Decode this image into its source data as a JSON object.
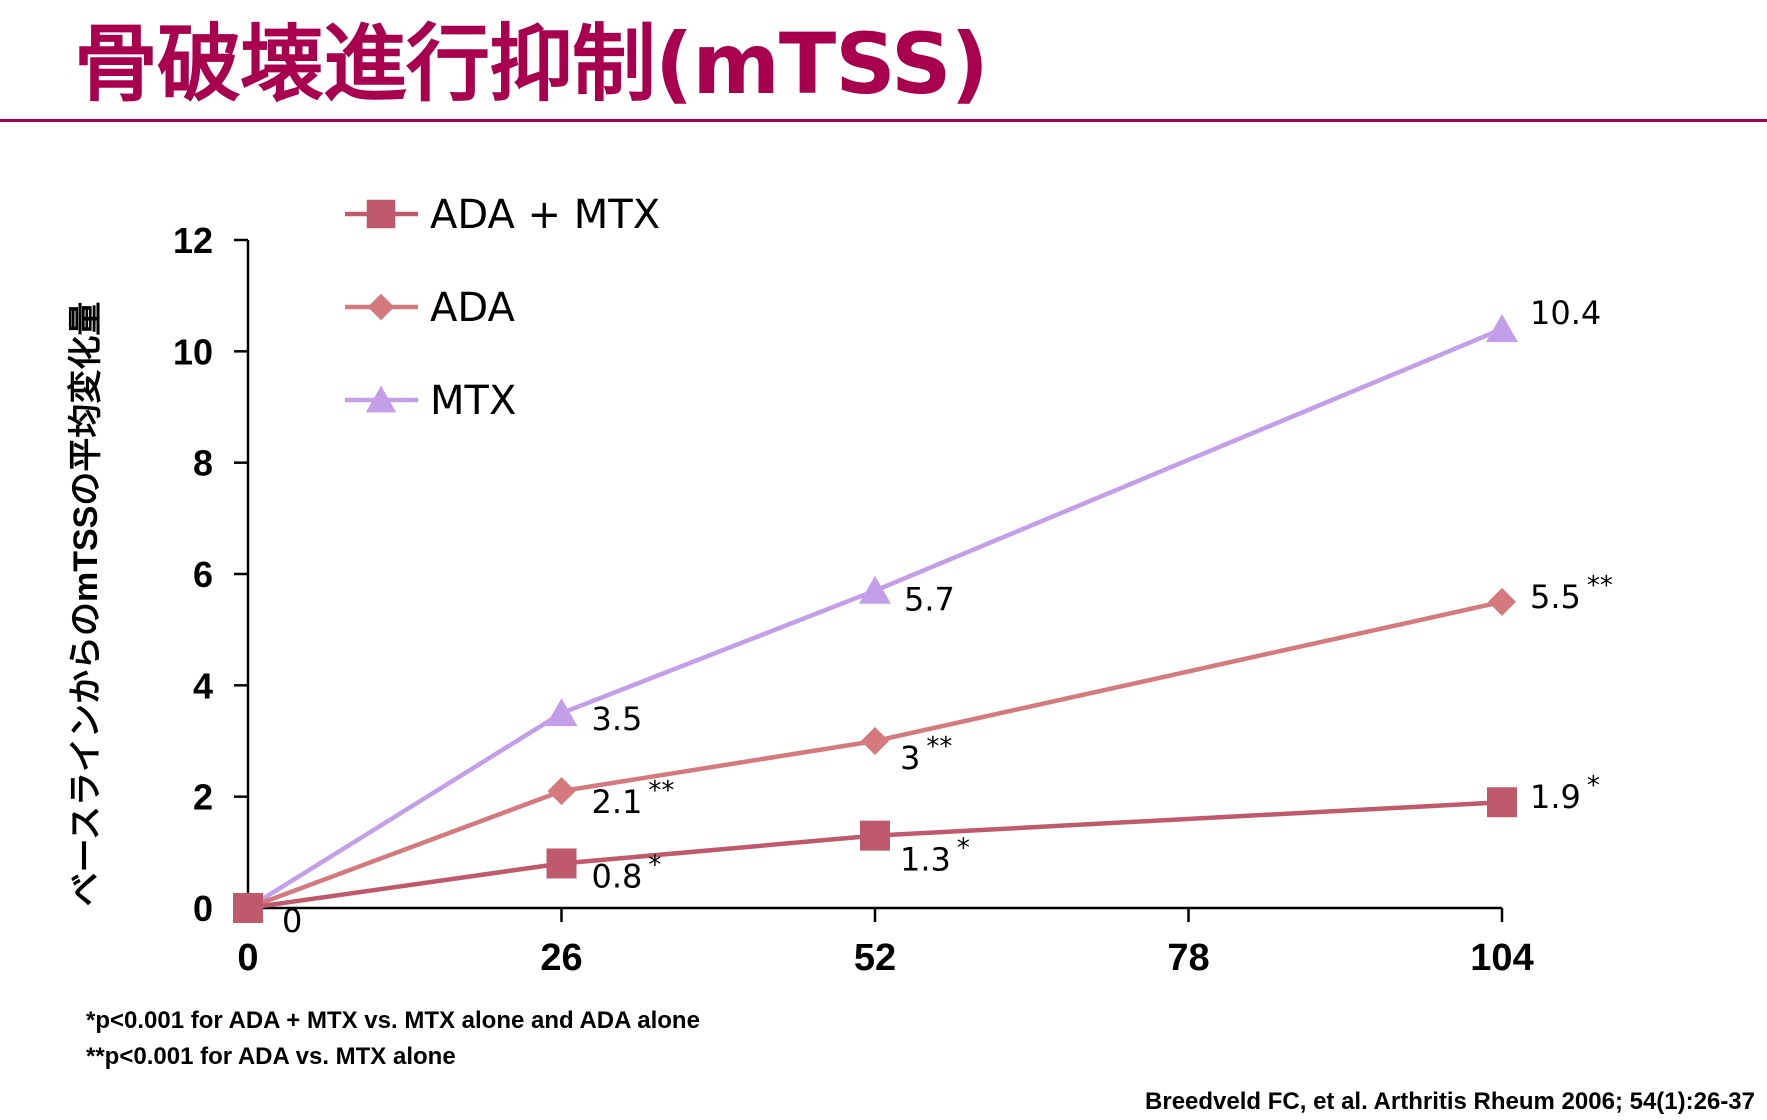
{
  "title": "骨破壊進行抑制(mTSS)",
  "footnotes": [
    "*p<0.001 for ADA + MTX vs. MTX alone and ADA alone",
    "**p<0.001 for ADA vs. MTX alone"
  ],
  "citation": "Breedveld FC, et al. Arthritis Rheum 2006; 54(1):26-37",
  "chart_data": {
    "type": "line",
    "ylabel": "ベースラインからのmTSSの平均変化量",
    "xlabel": "",
    "x": [
      0,
      26,
      52,
      104
    ],
    "xticks": [
      "0",
      "26",
      "52",
      "78",
      "104"
    ],
    "xlim": [
      0,
      104
    ],
    "yticks": [
      "0",
      "2",
      "4",
      "6",
      "8",
      "10",
      "12"
    ],
    "ylim": [
      0,
      12
    ],
    "grid": false,
    "legend_position": "top-left",
    "series": [
      {
        "name": "ADA + MTX",
        "marker": "square",
        "color": "#be5a6c",
        "values": [
          0,
          0.8,
          1.3,
          1.9
        ],
        "labels": [
          "0",
          "0.8",
          "1.3",
          "1.9"
        ],
        "sig": [
          "",
          "*",
          "*",
          "*"
        ]
      },
      {
        "name": "ADA",
        "marker": "diamond",
        "color": "#d4797d",
        "values": [
          0,
          2.1,
          3,
          5.5
        ],
        "labels": [
          "",
          "2.1",
          "3",
          "5.5"
        ],
        "sig": [
          "",
          "**",
          "**",
          "**"
        ]
      },
      {
        "name": "MTX",
        "marker": "triangle",
        "color": "#c39ee9",
        "values": [
          0,
          3.5,
          5.7,
          10.4
        ],
        "labels": [
          "",
          "3.5",
          "5.7",
          "10.4"
        ],
        "sig": [
          "",
          "",
          "",
          ""
        ]
      }
    ]
  }
}
